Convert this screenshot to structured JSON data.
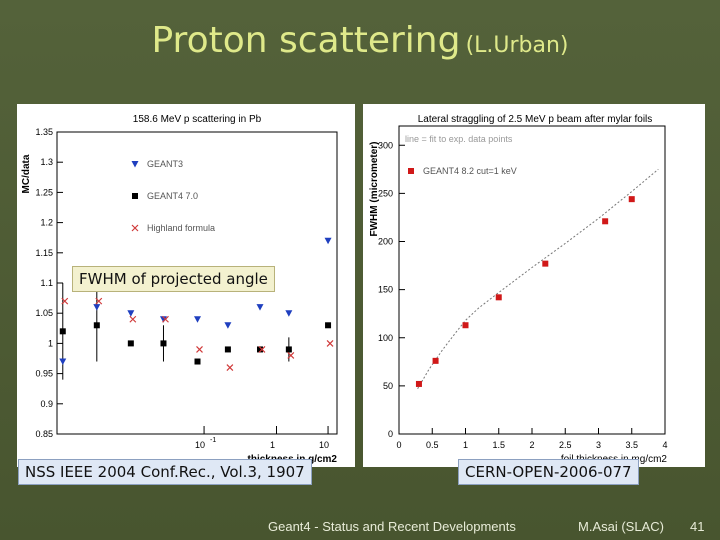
{
  "slide": {
    "title": "Proton scattering",
    "subtitle": "(L.Urban)",
    "callouts": {
      "fwhm": "FWHM of projected angle",
      "nss": "NSS IEEE 2004 Conf.Rec., Vol.3, 1907",
      "cern": "CERN-OPEN-2006-077"
    },
    "footer": {
      "talk": "Geant4 - Status and Recent Developments",
      "author": "M.Asai (SLAC)",
      "page": "41"
    }
  },
  "colors": {
    "title": "#dfe98a",
    "background": "#4d5a35",
    "geant3": "#1f3fbf",
    "geant4": "#000000",
    "highland": "#d03a3a",
    "geant4_right": "#d01818"
  },
  "chart_data": [
    {
      "type": "scatter",
      "title": "158.6 MeV p scattering in Pb",
      "xlabel": "thickness in g/cm2",
      "ylabel": "MC/data",
      "xscale": "log",
      "xlim": [
        0.04,
        12
      ],
      "ylim": [
        0.85,
        1.35
      ],
      "y_ticks": [
        0.85,
        0.9,
        0.95,
        1,
        1.05,
        1.1,
        1.15,
        1.2,
        1.25,
        1.3,
        1.35
      ],
      "y_tick_labels": [
        "0.85",
        "0.9",
        "0.95",
        "1",
        "1.05",
        "1.1",
        "1.15",
        "1.2",
        "1.25",
        "1.3",
        "1.35"
      ],
      "x_tick_labels": [
        {
          "x": 0.8,
          "base": "10",
          "exp": "-1"
        },
        {
          "x": 3.5,
          "base": "1",
          "exp": ""
        },
        {
          "x": 10,
          "base": "10",
          "exp": ""
        }
      ],
      "legend_position": "top-left",
      "series": [
        {
          "name": "GEANT3",
          "marker": "triangle-down",
          "color": "#1f3fbf",
          "x": [
            0.045,
            0.09,
            0.18,
            0.35,
            0.7,
            1.3,
            2.5,
            4.5,
            10
          ],
          "y": [
            0.97,
            1.06,
            1.05,
            1.04,
            1.04,
            1.03,
            1.06,
            1.05,
            1.17
          ]
        },
        {
          "name": "GEANT4 7.0",
          "marker": "square",
          "color": "#000000",
          "x": [
            0.045,
            0.09,
            0.18,
            0.35,
            0.7,
            1.3,
            2.5,
            4.5,
            10
          ],
          "y": [
            1.02,
            1.03,
            1.0,
            1.0,
            0.97,
            0.99,
            0.99,
            0.99,
            1.03
          ]
        },
        {
          "name": "Highland formula",
          "marker": "x",
          "color": "#d03a3a",
          "x": [
            0.045,
            0.09,
            0.18,
            0.35,
            0.7,
            1.3,
            2.5,
            4.5,
            10
          ],
          "y": [
            1.07,
            1.07,
            1.04,
            1.04,
            0.99,
            0.96,
            0.99,
            0.98,
            1.0
          ]
        }
      ]
    },
    {
      "type": "scatter",
      "title": "Lateral straggling of 2.5 MeV p beam after mylar foils",
      "subtitle": "line = fit to exp. data points",
      "xlabel": "foil thickness in mg/cm2",
      "ylabel": "FWHM (micrometer)",
      "xlim": [
        0,
        4
      ],
      "ylim": [
        0,
        320
      ],
      "x_ticks": [
        0,
        0.5,
        1,
        1.5,
        2,
        2.5,
        3,
        3.5,
        4
      ],
      "x_tick_labels": [
        "0",
        "0.5",
        "1",
        "1.5",
        "2",
        "2.5",
        "3",
        "3.5",
        "4"
      ],
      "y_ticks": [
        0,
        50,
        100,
        150,
        200,
        250,
        300
      ],
      "y_tick_labels": [
        "0",
        "50",
        "100",
        "150",
        "200",
        "250",
        "300"
      ],
      "legend_position": "top-left",
      "series": [
        {
          "name": "GEANT4 8.2 cut=1 keV",
          "marker": "square",
          "color": "#d01818",
          "x": [
            0.3,
            0.55,
            1.0,
            1.5,
            2.2,
            3.1,
            3.5
          ],
          "y": [
            52,
            76,
            113,
            142,
            177,
            221,
            244
          ]
        }
      ],
      "fit_line": {
        "x": [
          0.28,
          0.45,
          0.65,
          0.85,
          1.0,
          1.2,
          1.5,
          2.0,
          2.5,
          3.0,
          3.5,
          3.9
        ],
        "y": [
          47,
          67,
          87,
          105,
          118,
          131,
          147,
          173,
          198,
          224,
          252,
          275
        ]
      }
    }
  ]
}
